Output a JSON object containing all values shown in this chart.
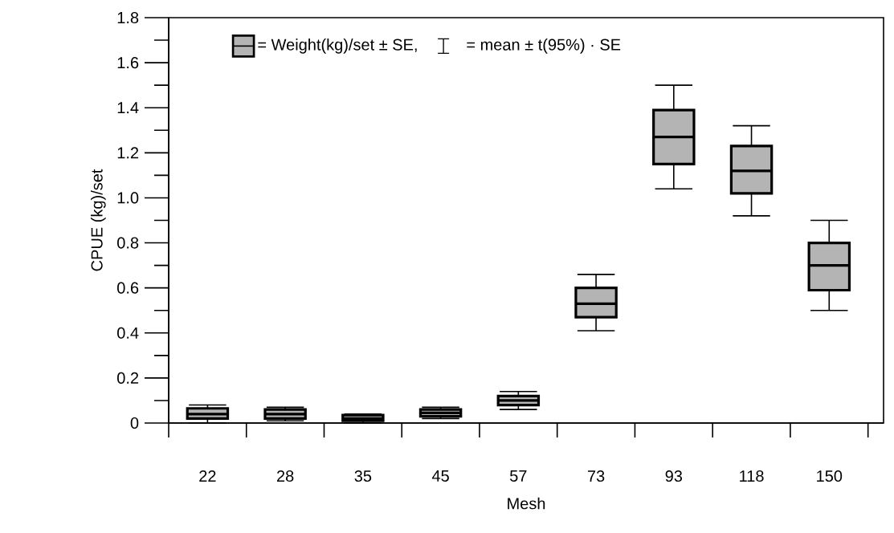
{
  "chart_data": {
    "type": "box",
    "xlabel": "Mesh",
    "ylabel": "CPUE (kg)/set",
    "categories": [
      "22",
      "28",
      "35",
      "45",
      "57",
      "73",
      "93",
      "118",
      "150"
    ],
    "ylim": [
      0,
      1.8
    ],
    "yticks": [
      0,
      {
        "value": 0.2,
        "label": "0.2"
      },
      {
        "value": 0.4,
        "label": "0.4"
      },
      {
        "value": 0.6,
        "label": "0.6"
      },
      {
        "value": 0.8,
        "label": "0.8"
      },
      {
        "value": 1.0,
        "label": "1.0"
      },
      {
        "value": 1.2,
        "label": "1.2"
      },
      {
        "value": 1.4,
        "label": "1.4"
      },
      {
        "value": 1.6,
        "label": "1.6"
      },
      {
        "value": 1.8,
        "label": "1.8"
      }
    ],
    "legend": "top",
    "grid": false,
    "series": [
      {
        "name": "= Weight(kg)/set ± SE,",
        "color": "#b4b4b4",
        "boxes": [
          {
            "low": 0.0,
            "q1": 0.02,
            "median": 0.04,
            "q3": 0.065,
            "high": 0.08
          },
          {
            "low": 0.01,
            "q1": 0.02,
            "median": 0.04,
            "q3": 0.06,
            "high": 0.07
          },
          {
            "low": 0.0,
            "q1": 0.01,
            "median": 0.02,
            "q3": 0.035,
            "high": 0.04
          },
          {
            "low": 0.02,
            "q1": 0.03,
            "median": 0.045,
            "q3": 0.06,
            "high": 0.07
          },
          {
            "low": 0.06,
            "q1": 0.08,
            "median": 0.1,
            "q3": 0.12,
            "high": 0.14
          },
          {
            "low": 0.41,
            "q1": 0.47,
            "median": 0.53,
            "q3": 0.6,
            "high": 0.66
          },
          {
            "low": 1.04,
            "q1": 1.15,
            "median": 1.27,
            "q3": 1.39,
            "high": 1.5
          },
          {
            "low": 0.92,
            "q1": 1.02,
            "median": 1.12,
            "q3": 1.23,
            "high": 1.32
          },
          {
            "low": 0.5,
            "q1": 0.59,
            "median": 0.7,
            "q3": 0.8,
            "high": 0.9
          }
        ]
      }
    ],
    "annotations": [
      "= mean ± t(95%) · SE"
    ]
  }
}
